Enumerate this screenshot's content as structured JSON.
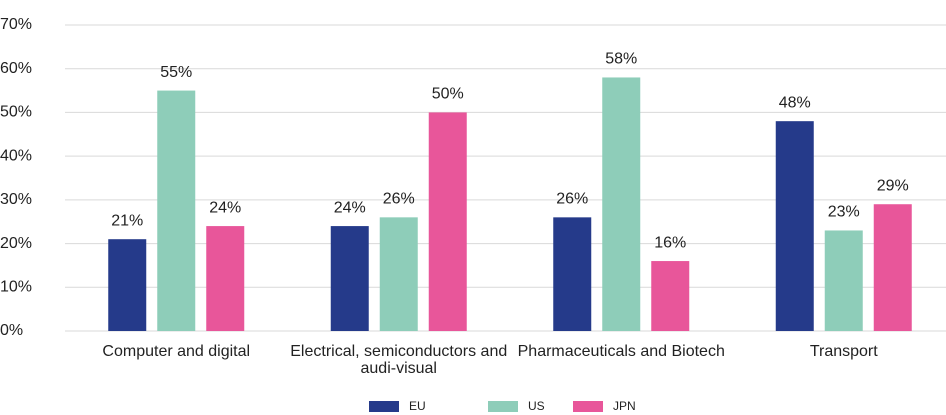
{
  "chart_data": {
    "type": "bar",
    "categories": [
      "Computer and digital",
      "Electrical, semiconductors and audi-visual",
      "Pharmaceuticals and Biotech",
      "Transport"
    ],
    "series": [
      {
        "name": "EU",
        "color": "#253a8a",
        "values": [
          21,
          24,
          26,
          48
        ],
        "value_labels": [
          "21%",
          "24%",
          "26%",
          "48%"
        ]
      },
      {
        "name": "US",
        "color": "#8ecdb9",
        "values": [
          55,
          26,
          58,
          23
        ],
        "value_labels": [
          "55%",
          "26%",
          "58%",
          "23%"
        ]
      },
      {
        "name": "JPN",
        "color": "#e8569a",
        "values": [
          24,
          50,
          16,
          29
        ],
        "value_labels": [
          "24%",
          "50%",
          "16%",
          "29%"
        ]
      }
    ],
    "ylim": [
      0,
      70
    ],
    "yticks": [
      {
        "value": 0,
        "label": "0%"
      },
      {
        "value": 10,
        "label": "10%"
      },
      {
        "value": 20,
        "label": "20%"
      },
      {
        "value": 30,
        "label": "30%"
      },
      {
        "value": 40,
        "label": "40%"
      },
      {
        "value": 50,
        "label": "50%"
      },
      {
        "value": 60,
        "label": "60%"
      },
      {
        "value": 70,
        "label": "70%"
      }
    ],
    "grid": true,
    "legend": "bottom"
  }
}
